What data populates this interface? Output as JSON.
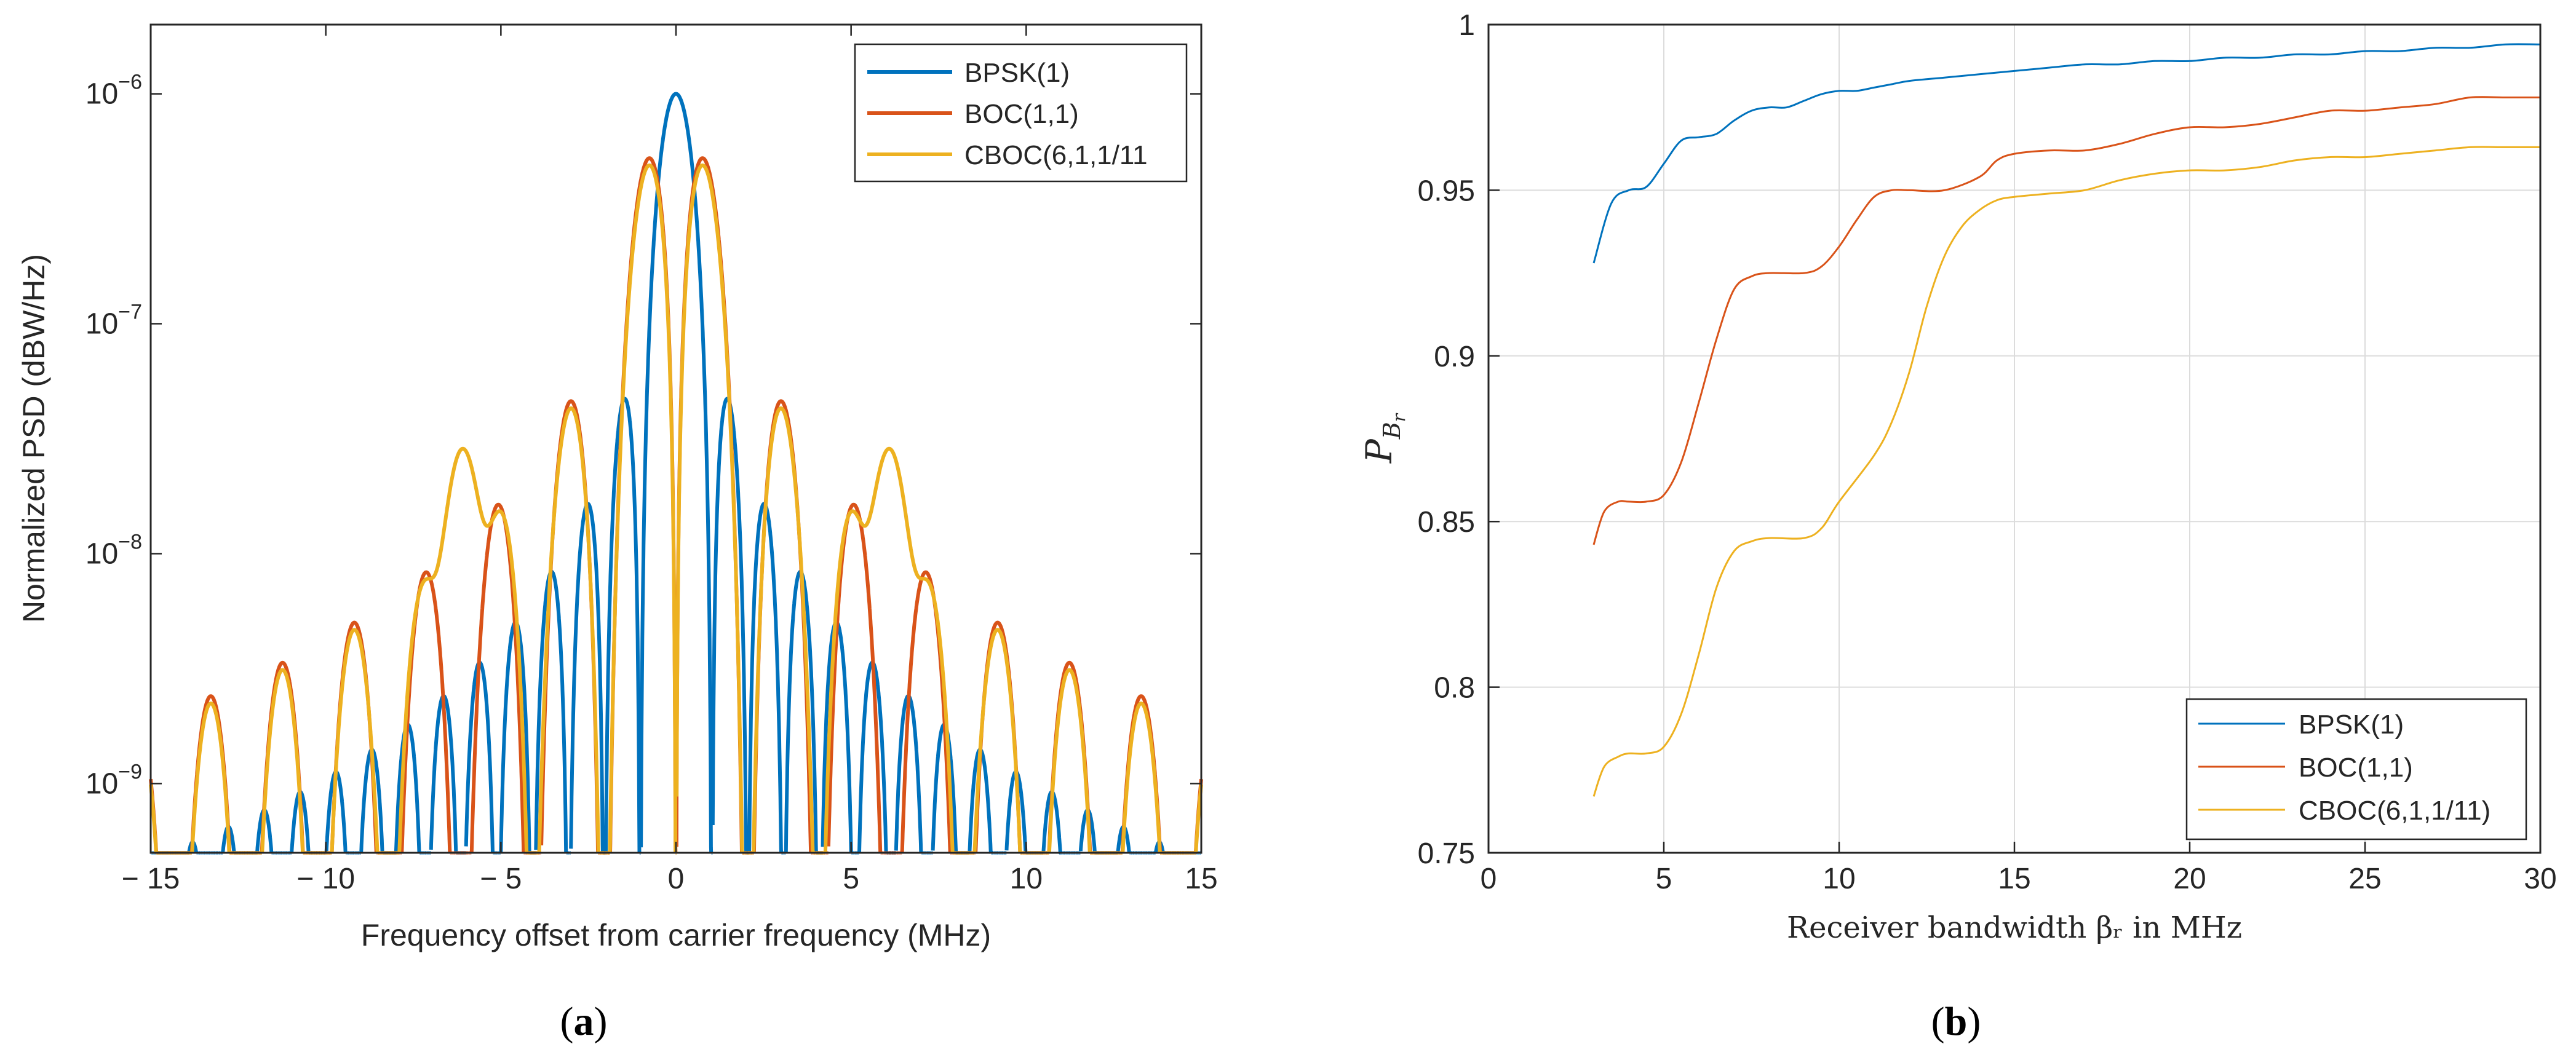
{
  "chart_data": [
    {
      "type": "line",
      "panel_label": "a",
      "title": "",
      "xlabel": "Frequency offset from carrier frequency (MHz)",
      "ylabel": "Normalized PSD (dBW/Hz)",
      "xlim": [
        -15,
        15
      ],
      "ylim": [
        5e-10,
        2e-06
      ],
      "yscale": "log",
      "grid": false,
      "legend_position": "top-right",
      "x_ticks": [
        -15,
        -10,
        -5,
        0,
        5,
        10,
        15
      ],
      "x_tick_labels": [
        "− 15",
        "− 10",
        "− 5",
        "0",
        "5",
        "10",
        "15"
      ],
      "y_ticks": [
        1e-09,
        1e-08,
        1e-07,
        1e-06
      ],
      "y_tick_bases": [
        "10",
        "10",
        "10",
        "10"
      ],
      "y_tick_exps": [
        "−9",
        "−8",
        "−7",
        "−6"
      ],
      "series": [
        {
          "name": "BPSK(1)",
          "color": "#0072BD",
          "model": "sinc-squared, chip rate 1.023 MHz, peak 1e-6"
        },
        {
          "name": "BOC(1,1)",
          "color": "#D95319",
          "model": "BOC(1,1) spectrum, peaks 5.1e-7 at ±0.8 MHz"
        },
        {
          "name": "CBOC(6,1,1/11",
          "color": "#EDB120",
          "model": "10/11 BOC(1,1) + 1/11 BOC(6,1), side peaks 3.6e-8 at ±6.1 MHz"
        }
      ]
    },
    {
      "type": "line",
      "panel_label": "b",
      "title": "",
      "xlabel": "Receiver bandwidth βᵣ in MHz",
      "ylabel": "P_{B_r}",
      "xlim": [
        0,
        30
      ],
      "ylim": [
        0.75,
        1
      ],
      "grid": true,
      "legend_position": "bottom-right",
      "x_ticks": [
        0,
        5,
        10,
        15,
        20,
        25,
        30
      ],
      "x_tick_labels": [
        "0",
        "5",
        "10",
        "15",
        "20",
        "25",
        "30"
      ],
      "y_ticks": [
        0.75,
        0.8,
        0.85,
        0.9,
        0.95,
        1
      ],
      "y_tick_labels": [
        "0.75",
        "0.8",
        "0.85",
        "0.9",
        "0.95",
        "1"
      ],
      "series": [
        {
          "name": "BPSK(1)",
          "color": "#0072BD",
          "x": [
            3,
            3.5,
            4,
            4.5,
            5,
            5.5,
            6,
            6.5,
            7,
            7.5,
            8,
            8.5,
            9,
            9.5,
            10,
            10.5,
            11,
            11.5,
            12,
            13,
            14,
            15,
            16,
            17,
            18,
            19,
            20,
            21,
            22,
            23,
            24,
            25,
            26,
            27,
            28,
            29,
            30
          ],
          "y": [
            0.928,
            0.946,
            0.95,
            0.951,
            0.958,
            0.965,
            0.966,
            0.967,
            0.971,
            0.974,
            0.975,
            0.975,
            0.977,
            0.979,
            0.98,
            0.98,
            0.981,
            0.982,
            0.983,
            0.984,
            0.985,
            0.986,
            0.987,
            0.988,
            0.988,
            0.989,
            0.989,
            0.99,
            0.99,
            0.991,
            0.991,
            0.992,
            0.992,
            0.993,
            0.993,
            0.994,
            0.994
          ]
        },
        {
          "name": "BOC(1,1)",
          "color": "#D95319",
          "x": [
            3,
            3.3,
            3.7,
            4,
            4.5,
            5,
            5.5,
            6,
            6.5,
            7,
            7.5,
            8,
            9,
            9.5,
            10,
            10.5,
            11,
            11.5,
            12,
            13,
            14,
            14.5,
            15,
            16,
            17,
            18,
            19,
            20,
            21,
            22,
            23,
            24,
            25,
            26,
            27,
            28,
            29,
            30
          ],
          "y": [
            0.843,
            0.853,
            0.856,
            0.856,
            0.856,
            0.858,
            0.868,
            0.886,
            0.905,
            0.92,
            0.924,
            0.925,
            0.925,
            0.927,
            0.933,
            0.941,
            0.948,
            0.95,
            0.95,
            0.95,
            0.954,
            0.959,
            0.961,
            0.962,
            0.962,
            0.964,
            0.967,
            0.969,
            0.969,
            0.97,
            0.972,
            0.974,
            0.974,
            0.975,
            0.976,
            0.978,
            0.978,
            0.978
          ]
        },
        {
          "name": "CBOC(6,1,1/11)",
          "color": "#EDB120",
          "x": [
            3,
            3.3,
            3.7,
            4,
            4.5,
            5,
            5.5,
            6,
            6.5,
            7,
            7.5,
            8,
            9,
            9.5,
            10,
            11,
            11.5,
            12,
            12.5,
            13,
            13.5,
            14,
            14.5,
            15,
            16,
            17,
            18,
            19,
            20,
            21,
            22,
            23,
            24,
            25,
            26,
            27,
            28,
            29,
            30
          ],
          "y": [
            0.767,
            0.776,
            0.779,
            0.78,
            0.78,
            0.782,
            0.792,
            0.81,
            0.83,
            0.841,
            0.844,
            0.845,
            0.845,
            0.848,
            0.856,
            0.87,
            0.88,
            0.895,
            0.915,
            0.93,
            0.939,
            0.944,
            0.947,
            0.948,
            0.949,
            0.95,
            0.953,
            0.955,
            0.956,
            0.956,
            0.957,
            0.959,
            0.96,
            0.96,
            0.961,
            0.962,
            0.963,
            0.963,
            0.963
          ]
        }
      ]
    }
  ]
}
